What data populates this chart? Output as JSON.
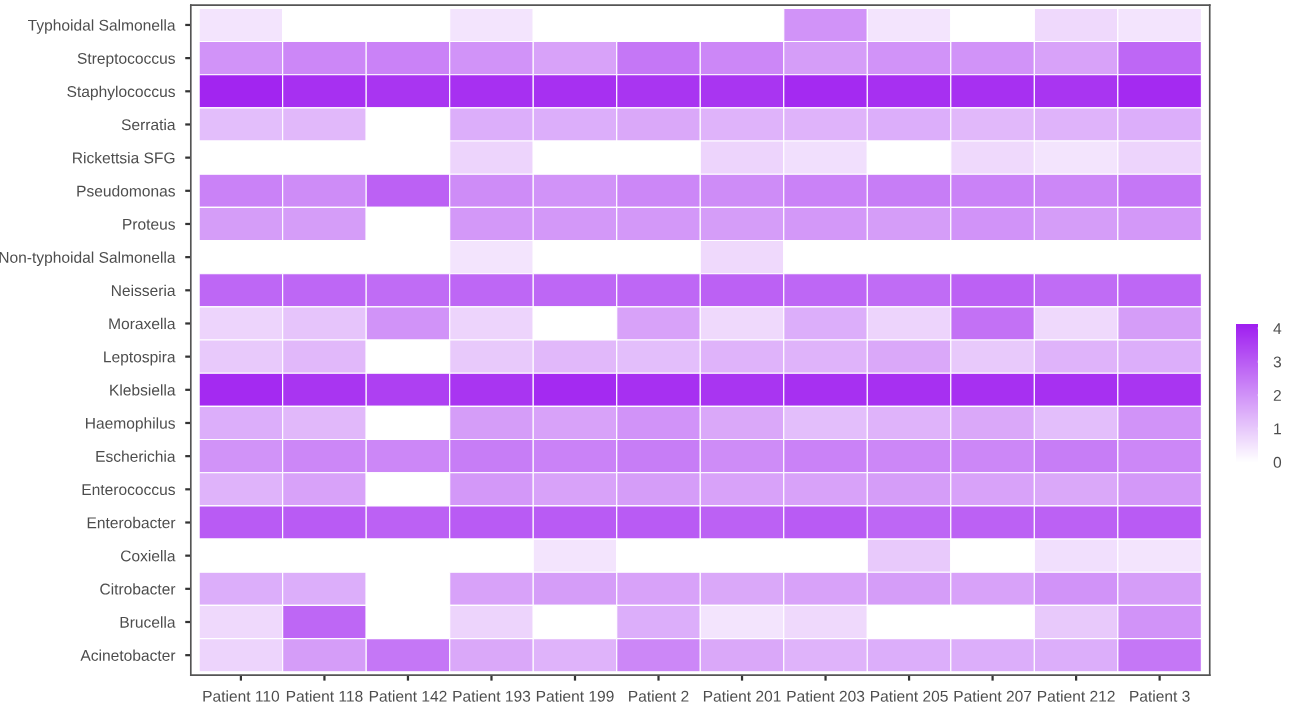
{
  "chart_data": {
    "type": "heatmap",
    "categories": [
      "Patient 110",
      "Patient 118",
      "Patient 142",
      "Patient 193",
      "Patient 199",
      "Patient 2",
      "Patient 201",
      "Patient 203",
      "Patient 205",
      "Patient 207",
      "Patient 212",
      "Patient 3"
    ],
    "y_categories": [
      "Typhoidal Salmonella",
      "Streptococcus",
      "Staphylococcus",
      "Serratia",
      "Rickettsia SFG",
      "Pseudomonas",
      "Proteus",
      "Non-typhoidal Salmonella",
      "Neisseria",
      "Moraxella",
      "Leptospira",
      "Klebsiella",
      "Haemophilus",
      "Escherichia",
      "Enterococcus",
      "Enterobacter",
      "Coxiella",
      "Citrobacter",
      "Brucella",
      "Acinetobacter"
    ],
    "cells": [
      [
        0.5,
        0,
        0,
        0.5,
        0,
        0,
        0,
        2,
        0.5,
        0,
        0.7,
        0.5
      ],
      [
        2,
        2.2,
        2.3,
        2,
        1.7,
        2.5,
        2.2,
        1.8,
        2,
        2,
        1.7,
        2.8
      ],
      [
        4,
        3.8,
        3.7,
        3.8,
        3.8,
        3.7,
        3.7,
        3.9,
        3.8,
        3.8,
        3.7,
        3.9
      ],
      [
        1.2,
        1.3,
        0,
        1.5,
        1.5,
        1.6,
        1.4,
        1.4,
        1.5,
        1.3,
        1.4,
        1.5
      ],
      [
        0,
        0,
        0,
        0.8,
        0,
        0,
        0.8,
        0.6,
        0,
        0.7,
        0.5,
        0.8
      ],
      [
        2.3,
        2.1,
        2.9,
        2.1,
        2,
        2.2,
        2.1,
        2.3,
        2.4,
        2.3,
        2.2,
        2.5
      ],
      [
        1.8,
        1.8,
        0,
        1.9,
        1.9,
        1.9,
        1.8,
        1.9,
        1.8,
        2,
        1.8,
        1.9
      ],
      [
        0,
        0,
        0,
        0.5,
        0,
        0,
        0.7,
        0,
        0,
        0,
        0,
        0
      ],
      [
        2.8,
        2.8,
        2.7,
        2.8,
        2.8,
        2.8,
        2.9,
        2.8,
        2.7,
        2.9,
        2.7,
        2.8
      ],
      [
        0.8,
        1.1,
        2,
        0.8,
        0,
        1.7,
        0.7,
        1.5,
        0.8,
        2.6,
        0.7,
        1.8
      ],
      [
        1,
        1.3,
        0,
        1,
        1.3,
        1.2,
        1.4,
        1.4,
        1.6,
        1,
        1.4,
        1.5
      ],
      [
        3.9,
        3.7,
        3.5,
        3.7,
        3.9,
        3.8,
        3.7,
        3.8,
        3.8,
        3.8,
        3.8,
        3.7
      ],
      [
        1.5,
        1.3,
        0,
        1.8,
        1.7,
        2,
        1.6,
        1.2,
        1.4,
        1.6,
        1.2,
        2
      ],
      [
        2,
        2.2,
        2.2,
        2.4,
        2.3,
        2.4,
        2.1,
        2.3,
        2.2,
        2.2,
        2.4,
        2.2
      ],
      [
        1.4,
        1.7,
        0,
        1.9,
        1.7,
        1.8,
        1.7,
        1.7,
        1.8,
        1.7,
        1.6,
        1.9
      ],
      [
        3,
        3,
        2.9,
        3,
        3,
        3,
        2.9,
        3,
        2.8,
        2.9,
        2.9,
        3
      ],
      [
        0,
        0,
        0,
        0,
        0.5,
        0,
        0,
        0,
        1,
        0,
        0.6,
        0.5
      ],
      [
        1.5,
        1.5,
        0,
        1.7,
        1.8,
        1.7,
        1.6,
        1.7,
        1.8,
        1.7,
        2,
        1.8
      ],
      [
        0.7,
        2.8,
        0,
        0.8,
        0,
        1.5,
        0.5,
        0.7,
        0,
        0,
        1,
        2
      ],
      [
        0.8,
        1.8,
        2.5,
        1.6,
        1.4,
        2.2,
        1.6,
        1.4,
        1.5,
        1.5,
        1.5,
        2.5
      ]
    ],
    "colors": [
      "#ffffff",
      "#a020f0"
    ],
    "clim": [
      0,
      4.1
    ],
    "cticks": [
      0,
      1,
      2,
      3,
      4
    ]
  }
}
